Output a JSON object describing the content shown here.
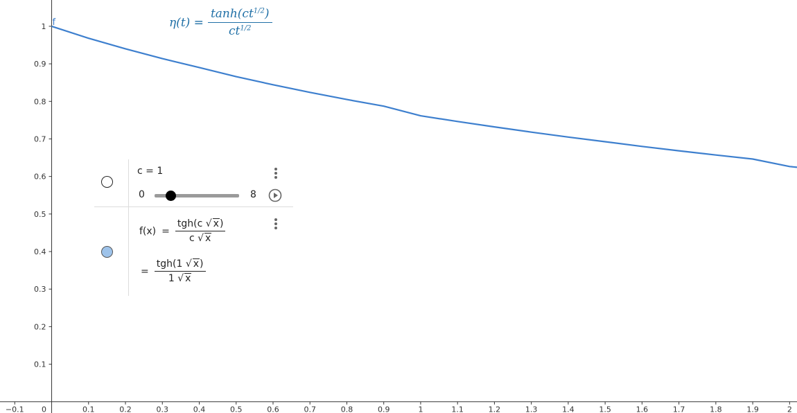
{
  "chart_data": {
    "type": "line",
    "title": "",
    "xlabel": "",
    "ylabel": "",
    "xlim": [
      -0.14,
      2.02
    ],
    "ylim": [
      -0.03,
      1.07
    ],
    "x_ticks": [
      "−0.1",
      "0",
      "0.1",
      "0.2",
      "0.3",
      "0.4",
      "0.5",
      "0.6",
      "0.7",
      "0.8",
      "0.9",
      "1",
      "1.1",
      "1.2",
      "1.3",
      "1.4",
      "1.5",
      "1.6",
      "1.7",
      "1.8",
      "1.9",
      "2"
    ],
    "x_tick_values": [
      -0.1,
      0,
      0.1,
      0.2,
      0.3,
      0.4,
      0.5,
      0.6,
      0.7,
      0.8,
      0.9,
      1,
      1.1,
      1.2,
      1.3,
      1.4,
      1.5,
      1.6,
      1.7,
      1.8,
      1.9,
      2
    ],
    "y_ticks": [
      "0.1",
      "0.2",
      "0.3",
      "0.4",
      "0.5",
      "0.6",
      "0.7",
      "0.8",
      "0.9",
      "1"
    ],
    "y_tick_values": [
      0.1,
      0.2,
      0.3,
      0.4,
      0.5,
      0.6,
      0.7,
      0.8,
      0.9,
      1
    ],
    "series": [
      {
        "name": "f",
        "color": "#3d7fce",
        "x": [
          0,
          0.1,
          0.2,
          0.3,
          0.4,
          0.5,
          0.6,
          0.7,
          0.8,
          0.9,
          1,
          1.1,
          1.2,
          1.3,
          1.4,
          1.5,
          1.6,
          1.7,
          1.8,
          1.9,
          2,
          2.02
        ],
        "y": [
          1,
          0.9681,
          0.94,
          0.9139,
          0.8902,
          0.8658,
          0.8443,
          0.824,
          0.805,
          0.7873,
          0.7616,
          0.7465,
          0.732,
          0.718,
          0.705,
          0.6925,
          0.68,
          0.6683,
          0.6572,
          0.6465,
          0.6265,
          0.6245
        ]
      }
    ],
    "curve_label": "f",
    "grid": false
  },
  "formula": {
    "lhs": "η(t) =",
    "numerator": "tanh(ct",
    "numerator_exp": "1/2",
    "numerator_close": ")",
    "denominator": "ct",
    "denominator_exp": "1/2"
  },
  "algebra": {
    "slider": {
      "label": "c = 1",
      "min_label": "0",
      "max_label": "8",
      "value": 1,
      "min": 0,
      "max": 8
    },
    "function": {
      "lhs": "f(x)",
      "eq1": "=",
      "num1_prefix": "tgh(c ",
      "num1_rad": "x",
      "num1_suffix": ")",
      "den1_prefix": "c ",
      "den1_rad": "x",
      "eq2": "=",
      "num2_prefix": "tgh(1 ",
      "num2_rad": "x",
      "num2_suffix": ")",
      "den2_prefix": "1 ",
      "den2_rad": "x",
      "color": "#9ec3ea"
    }
  }
}
